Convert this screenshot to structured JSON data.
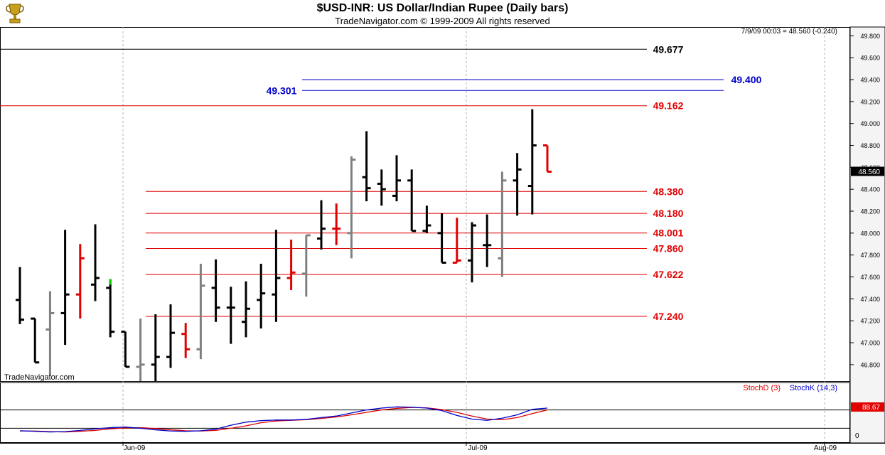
{
  "header": {
    "title": "$USD-INR:  US Dollar/Indian Rupee  (Daily bars)",
    "subtitle": "TradeNavigator.com © 1999-2009 All rights reserved"
  },
  "watermark": "TradeNavigator.com",
  "colors": {
    "up": "#000000",
    "down": "#e00000",
    "flat": "#808080",
    "doji": "#00cc00",
    "blue": "#0000cc",
    "red": "#e00000"
  },
  "chart_data": [
    {
      "type": "ohlc",
      "last_info": "7/9/09 00:03 = 48.560 (-0.240)",
      "last_value_label": "48.560",
      "ylim": [
        46.65,
        49.88
      ],
      "y_ticks": [
        "46.800",
        "47.000",
        "47.200",
        "47.400",
        "47.600",
        "47.800",
        "48.000",
        "48.200",
        "48.400",
        "48.600",
        "48.800",
        "49.000",
        "49.200",
        "49.400",
        "49.600",
        "49.800"
      ],
      "x_ticks": [
        "Jun-09",
        "Jul-09",
        "Aug-09"
      ],
      "bars": [
        {
          "o": 47.39,
          "h": 47.69,
          "l": 47.17,
          "c": 47.21,
          "s": "up"
        },
        {
          "o": 47.22,
          "h": 47.22,
          "l": 46.82,
          "c": 46.82,
          "s": "up"
        },
        {
          "o": 47.12,
          "h": 47.47,
          "l": 46.7,
          "c": 47.27,
          "s": "flat"
        },
        {
          "o": 47.27,
          "h": 48.03,
          "l": 46.98,
          "c": 47.44,
          "s": "up"
        },
        {
          "o": 47.44,
          "h": 47.9,
          "l": 47.22,
          "c": 47.77,
          "s": "down"
        },
        {
          "o": 47.53,
          "h": 48.08,
          "l": 47.38,
          "c": 47.59,
          "s": "up"
        },
        {
          "o": 47.5,
          "h": 47.58,
          "l": 47.05,
          "c": 47.1,
          "s": "up"
        },
        {
          "o": 47.1,
          "h": 47.1,
          "l": 46.78,
          "c": 46.78,
          "s": "up"
        },
        {
          "o": 46.78,
          "h": 47.22,
          "l": 46.65,
          "c": 46.8,
          "s": "flat"
        },
        {
          "o": 46.8,
          "h": 47.26,
          "l": 46.65,
          "c": 46.87,
          "s": "up"
        },
        {
          "o": 46.87,
          "h": 47.35,
          "l": 46.77,
          "c": 47.09,
          "s": "up"
        },
        {
          "o": 47.08,
          "h": 47.18,
          "l": 46.86,
          "c": 46.94,
          "s": "down"
        },
        {
          "o": 46.94,
          "h": 47.72,
          "l": 46.85,
          "c": 47.52,
          "s": "flat"
        },
        {
          "o": 47.5,
          "h": 47.76,
          "l": 47.19,
          "c": 47.32,
          "s": "up"
        },
        {
          "o": 47.32,
          "h": 47.51,
          "l": 46.99,
          "c": 47.32,
          "s": "up"
        },
        {
          "o": 47.19,
          "h": 47.56,
          "l": 47.05,
          "c": 47.31,
          "s": "up"
        },
        {
          "o": 47.39,
          "h": 47.72,
          "l": 47.13,
          "c": 47.45,
          "s": "up"
        },
        {
          "o": 47.44,
          "h": 48.03,
          "l": 47.19,
          "c": 47.59,
          "s": "up"
        },
        {
          "o": 47.59,
          "h": 47.94,
          "l": 47.48,
          "c": 47.64,
          "s": "down"
        },
        {
          "o": 47.63,
          "h": 47.98,
          "l": 47.42,
          "c": 47.98,
          "s": "flat"
        },
        {
          "o": 47.95,
          "h": 48.3,
          "l": 47.85,
          "c": 48.04,
          "s": "up"
        },
        {
          "o": 48.04,
          "h": 48.27,
          "l": 47.89,
          "c": 48.04,
          "s": "down"
        },
        {
          "o": 48.0,
          "h": 48.7,
          "l": 47.77,
          "c": 48.67,
          "s": "flat"
        },
        {
          "o": 48.51,
          "h": 48.93,
          "l": 48.29,
          "c": 48.41,
          "s": "up"
        },
        {
          "o": 48.45,
          "h": 48.58,
          "l": 48.25,
          "c": 48.4,
          "s": "up"
        },
        {
          "o": 48.34,
          "h": 48.71,
          "l": 48.29,
          "c": 48.48,
          "s": "up"
        },
        {
          "o": 48.48,
          "h": 48.58,
          "l": 48.02,
          "c": 48.02,
          "s": "up"
        },
        {
          "o": 48.02,
          "h": 48.25,
          "l": 48.0,
          "c": 48.07,
          "s": "up"
        },
        {
          "o": 48.0,
          "h": 48.18,
          "l": 47.73,
          "c": 47.73,
          "s": "up"
        },
        {
          "o": 47.73,
          "h": 48.14,
          "l": 47.73,
          "c": 47.75,
          "s": "down"
        },
        {
          "o": 47.75,
          "h": 48.1,
          "l": 47.55,
          "c": 48.07,
          "s": "up"
        },
        {
          "o": 47.89,
          "h": 48.17,
          "l": 47.69,
          "c": 47.89,
          "s": "up"
        },
        {
          "o": 47.77,
          "h": 48.56,
          "l": 47.6,
          "c": 48.48,
          "s": "flat"
        },
        {
          "o": 48.48,
          "h": 48.73,
          "l": 48.16,
          "c": 48.58,
          "s": "up"
        },
        {
          "o": 48.43,
          "h": 49.13,
          "l": 48.17,
          "c": 48.8,
          "s": "up"
        },
        {
          "o": 48.8,
          "h": 48.8,
          "l": 48.56,
          "c": 48.56,
          "s": "down"
        }
      ],
      "levels": [
        {
          "value": 49.677,
          "label": "49.677",
          "color": "#000000"
        },
        {
          "value": 49.4,
          "label": "49.400",
          "color": "#0000cc"
        },
        {
          "value": 49.301,
          "label": "49.301",
          "color": "#0000cc"
        },
        {
          "value": 49.162,
          "label": "49.162",
          "color": "#e00000"
        },
        {
          "value": 48.38,
          "label": "48.380",
          "color": "#e00000"
        },
        {
          "value": 48.18,
          "label": "48.180",
          "color": "#e00000"
        },
        {
          "value": 48.001,
          "label": "48.001",
          "color": "#e00000"
        },
        {
          "value": 47.86,
          "label": "47.860",
          "color": "#e00000"
        },
        {
          "value": 47.622,
          "label": "47.622",
          "color": "#e00000"
        },
        {
          "value": 47.24,
          "label": "47.240",
          "color": "#e00000"
        }
      ]
    },
    {
      "type": "line",
      "legend": [
        "StochD (3)",
        "StochK (14,3)"
      ],
      "y_tick": "0",
      "last_value_label": "88.67",
      "series": [
        {
          "name": "StochK (14,3)",
          "color": "#0000cc",
          "values": [
            12,
            10,
            8,
            9,
            13,
            18,
            22,
            24,
            20,
            15,
            11,
            10,
            12,
            17,
            30,
            40,
            45,
            47,
            47,
            49,
            55,
            60,
            70,
            80,
            86,
            90,
            89,
            86,
            78,
            62,
            50,
            46,
            53,
            64,
            82,
            86
          ]
        },
        {
          "name": "StochD (3)",
          "color": "#e00000",
          "values": [
            11,
            11,
            9,
            8,
            10,
            13,
            18,
            21,
            22,
            19,
            15,
            12,
            11,
            13,
            20,
            28,
            38,
            44,
            46,
            48,
            52,
            57,
            64,
            72,
            80,
            85,
            88,
            87,
            81,
            72,
            60,
            50,
            48,
            55,
            68,
            80
          ]
        }
      ]
    }
  ]
}
